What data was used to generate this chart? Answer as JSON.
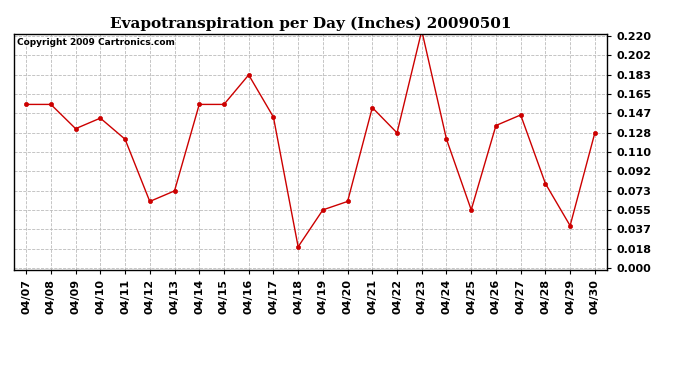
{
  "title": "Evapotranspiration per Day (Inches) 20090501",
  "copyright": "Copyright 2009 Cartronics.com",
  "dates": [
    "04/07",
    "04/08",
    "04/09",
    "04/10",
    "04/11",
    "04/12",
    "04/13",
    "04/14",
    "04/15",
    "04/16",
    "04/17",
    "04/18",
    "04/19",
    "04/20",
    "04/21",
    "04/22",
    "04/23",
    "04/24",
    "04/25",
    "04/26",
    "04/27",
    "04/28",
    "04/29",
    "04/30"
  ],
  "values": [
    0.155,
    0.155,
    0.132,
    0.142,
    0.122,
    0.063,
    0.073,
    0.155,
    0.155,
    0.183,
    0.143,
    0.02,
    0.055,
    0.063,
    0.152,
    0.128,
    0.225,
    0.122,
    0.055,
    0.135,
    0.145,
    0.08,
    0.04,
    0.128
  ],
  "line_color": "#cc0000",
  "marker": "o",
  "marker_size": 3,
  "background_color": "#ffffff",
  "plot_bg_color": "#ffffff",
  "grid_color": "#bbbbbb",
  "ylim": [
    0.0,
    0.22
  ],
  "yticks": [
    0.0,
    0.018,
    0.037,
    0.055,
    0.073,
    0.092,
    0.11,
    0.128,
    0.147,
    0.165,
    0.183,
    0.202,
    0.22
  ],
  "title_fontsize": 11,
  "tick_fontsize": 8,
  "copyright_fontsize": 6.5
}
